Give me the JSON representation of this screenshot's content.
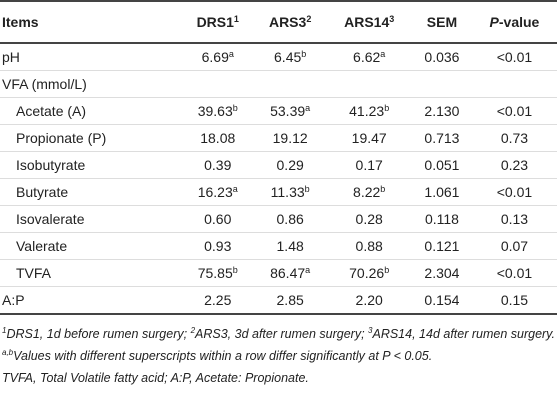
{
  "table": {
    "header": [
      "Items",
      {
        "text": "DRS1",
        "sup": "1"
      },
      {
        "text": "ARS3",
        "sup": "2"
      },
      {
        "text": "ARS14",
        "sup": "3"
      },
      "SEM",
      {
        "em": "P",
        "text": "-value"
      }
    ],
    "rows": [
      {
        "label": "pH",
        "cells": [
          {
            "v": "6.69",
            "sup": "a"
          },
          {
            "v": "6.45",
            "sup": "b"
          },
          {
            "v": "6.62",
            "sup": "a"
          },
          "0.036",
          "<0.01"
        ]
      },
      {
        "label": "VFA (mmol/L)",
        "rows": [
          {
            "label": "Acetate (A)",
            "cells": [
              {
                "v": "39.63",
                "sup": "b"
              },
              {
                "v": "53.39",
                "sup": "a"
              },
              {
                "v": "41.23",
                "sup": "b"
              },
              "2.130",
              "<0.01"
            ]
          },
          {
            "label": "Propionate (P)",
            "cells": [
              "18.08",
              "19.12",
              "19.47",
              "0.713",
              "0.73"
            ]
          },
          {
            "label": "Isobutyrate",
            "cells": [
              "0.39",
              "0.29",
              "0.17",
              "0.051",
              "0.23"
            ]
          },
          {
            "label": "Butyrate",
            "cells": [
              {
                "v": "16.23",
                "sup": "a"
              },
              {
                "v": "11.33",
                "sup": "b"
              },
              {
                "v": "8.22",
                "sup": "b"
              },
              "1.061",
              "<0.01"
            ]
          },
          {
            "label": "Isovalerate",
            "cells": [
              "0.60",
              "0.86",
              "0.28",
              "0.118",
              "0.13"
            ]
          },
          {
            "label": "Valerate",
            "cells": [
              "0.93",
              "1.48",
              "0.88",
              "0.121",
              "0.07"
            ]
          },
          {
            "label": "TVFA",
            "cells": [
              {
                "v": "75.85",
                "sup": "b"
              },
              {
                "v": "86.47",
                "sup": "a"
              },
              {
                "v": "70.26",
                "sup": "b"
              },
              "2.304",
              "<0.01"
            ]
          }
        ]
      },
      {
        "label": "A:P",
        "cells": [
          "2.25",
          "2.85",
          "2.20",
          "0.154",
          "0.15"
        ]
      }
    ]
  },
  "footnotes": [
    [
      {
        "sup": "1",
        "text": "DRS1, 1d before rumen surgery; "
      },
      {
        "sup": "2",
        "text": "ARS3, 3d after rumen surgery; "
      },
      {
        "sup": "3",
        "text": "ARS14, 14d after rumen surgery."
      }
    ],
    [
      {
        "sup": "a,b",
        "text": "Values with different superscripts within a row differ significantly at P < 0.05."
      }
    ],
    [
      {
        "text": "TVFA, Total Volatile fatty acid; A:P, Acetate: Propionate."
      }
    ]
  ]
}
